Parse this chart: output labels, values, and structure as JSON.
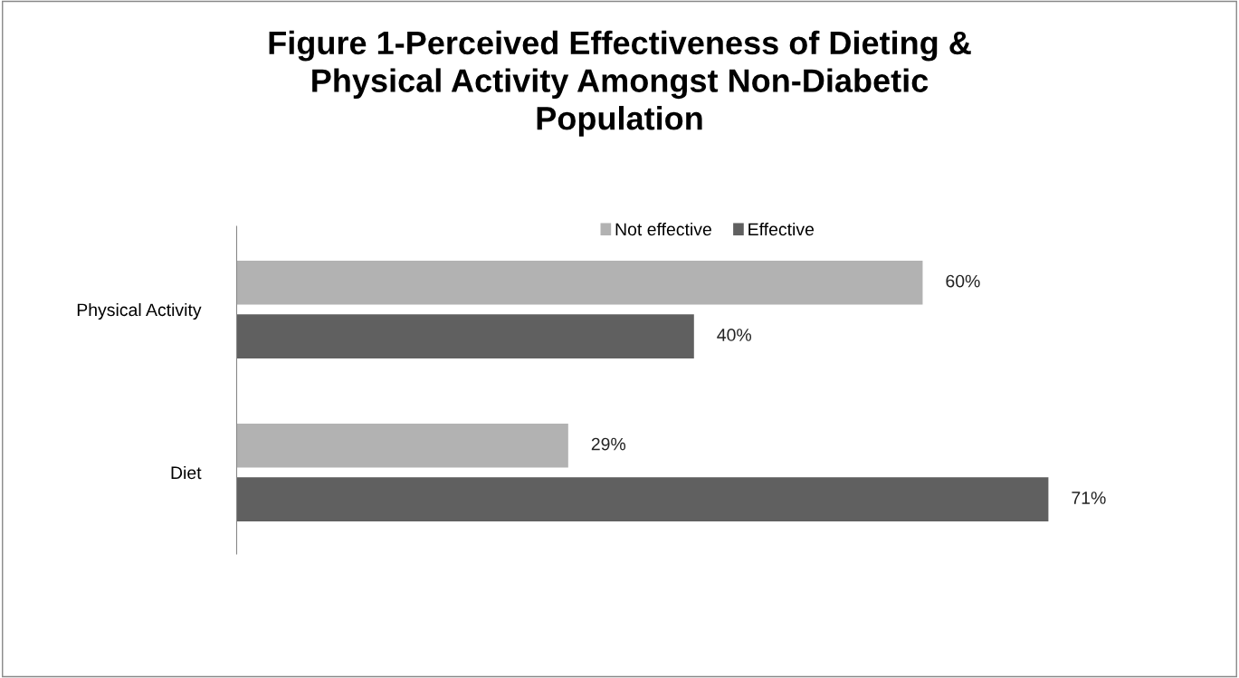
{
  "chart_data": {
    "type": "bar",
    "orientation": "horizontal",
    "title": "Figure 1-Perceived Effectiveness of Dieting &\nPhysical Activity Amongst Non-Diabetic\nPopulation",
    "categories": [
      "Physical Activity",
      "Diet"
    ],
    "tick_labels": "y",
    "legend": "top",
    "series": [
      {
        "name": "Not effective",
        "color": "#b2b2b2",
        "values": [
          60,
          29
        ],
        "value_labels": [
          "60%",
          "29%"
        ]
      },
      {
        "name": "Effective",
        "color": "#606060",
        "values": [
          40,
          71
        ],
        "value_labels": [
          "40%",
          "71%"
        ]
      }
    ]
  }
}
